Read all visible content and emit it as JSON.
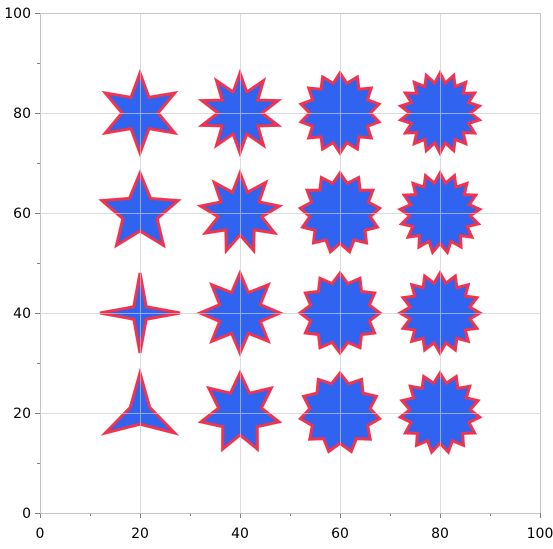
{
  "chart_data": {
    "type": "scatter",
    "title": "",
    "xlabel": "",
    "ylabel": "",
    "xlim": [
      0,
      100
    ],
    "ylim": [
      0,
      100
    ],
    "grid": true,
    "x_ticks": [
      "0",
      "20",
      "40",
      "60",
      "80",
      "100"
    ],
    "y_ticks": [
      "0",
      "20",
      "40",
      "60",
      "80",
      "100"
    ],
    "marker_fill": "#2f63f0",
    "marker_stroke": "#f0344f",
    "grid_color": "#d3d3d3",
    "points": [
      {
        "x": 20,
        "y": 20,
        "spikes": 3
      },
      {
        "x": 20,
        "y": 40,
        "spikes": 4
      },
      {
        "x": 20,
        "y": 60,
        "spikes": 5
      },
      {
        "x": 20,
        "y": 80,
        "spikes": 6
      },
      {
        "x": 40,
        "y": 20,
        "spikes": 7
      },
      {
        "x": 40,
        "y": 40,
        "spikes": 8
      },
      {
        "x": 40,
        "y": 60,
        "spikes": 9
      },
      {
        "x": 40,
        "y": 80,
        "spikes": 10
      },
      {
        "x": 60,
        "y": 20,
        "spikes": 11
      },
      {
        "x": 60,
        "y": 40,
        "spikes": 12
      },
      {
        "x": 60,
        "y": 60,
        "spikes": 13
      },
      {
        "x": 60,
        "y": 80,
        "spikes": 14
      },
      {
        "x": 80,
        "y": 20,
        "spikes": 15
      },
      {
        "x": 80,
        "y": 40,
        "spikes": 16
      },
      {
        "x": 80,
        "y": 60,
        "spikes": 17
      },
      {
        "x": 80,
        "y": 80,
        "spikes": 18
      }
    ]
  }
}
